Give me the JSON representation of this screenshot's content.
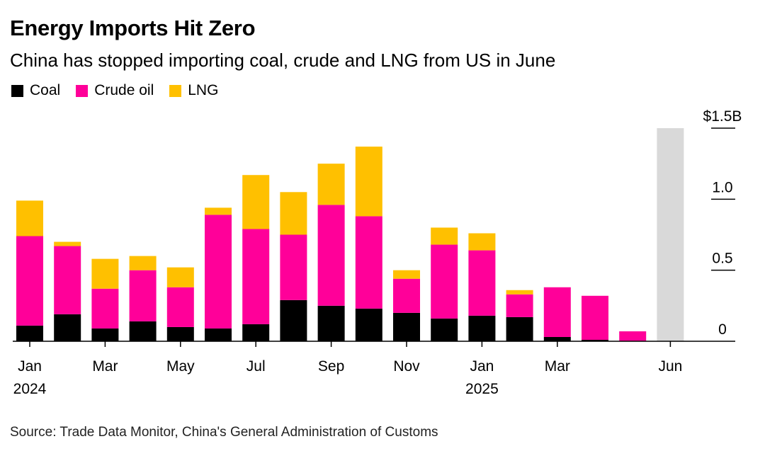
{
  "title": "Energy Imports Hit Zero",
  "subtitle": "China has stopped importing coal, crude and LNG from US in June",
  "legend": [
    {
      "label": "Coal",
      "color": "#000000"
    },
    {
      "label": "Crude oil",
      "color": "#ff0099"
    },
    {
      "label": "LNG",
      "color": "#ffc000"
    }
  ],
  "source": "Source: Trade Data Monitor, China's General Administration of Customs",
  "colors": {
    "coal": "#000000",
    "crude": "#ff0099",
    "lng": "#ffc000",
    "highlight": "#d9d9d9",
    "axis": "#000000"
  },
  "chart_data": {
    "type": "bar",
    "stacked": true,
    "categories": [
      "2024-01",
      "2024-02",
      "2024-03",
      "2024-04",
      "2024-05",
      "2024-06",
      "2024-07",
      "2024-08",
      "2024-09",
      "2024-10",
      "2024-11",
      "2024-12",
      "2025-01",
      "2025-02",
      "2025-03",
      "2025-04",
      "2025-05",
      "2025-06"
    ],
    "series": [
      {
        "name": "Coal",
        "color": "#000000",
        "values": [
          0.11,
          0.19,
          0.09,
          0.14,
          0.1,
          0.09,
          0.12,
          0.29,
          0.25,
          0.23,
          0.2,
          0.16,
          0.18,
          0.17,
          0.03,
          0.01,
          0.0,
          0.0
        ]
      },
      {
        "name": "Crude oil",
        "color": "#ff0099",
        "values": [
          0.63,
          0.48,
          0.28,
          0.36,
          0.28,
          0.8,
          0.67,
          0.46,
          0.71,
          0.65,
          0.24,
          0.52,
          0.46,
          0.16,
          0.35,
          0.31,
          0.07,
          0.0
        ]
      },
      {
        "name": "LNG",
        "color": "#ffc000",
        "values": [
          0.25,
          0.03,
          0.21,
          0.1,
          0.14,
          0.05,
          0.38,
          0.3,
          0.29,
          0.49,
          0.06,
          0.12,
          0.12,
          0.03,
          0.0,
          0.0,
          0.0,
          0.0
        ]
      }
    ],
    "highlight": {
      "category": "2025-06",
      "value": 1.5
    },
    "y_ticks": [
      {
        "value": 0,
        "label": "0"
      },
      {
        "value": 0.5,
        "label": "0.5"
      },
      {
        "value": 1.0,
        "label": "1.0"
      },
      {
        "value": 1.5,
        "label": "$1.5B"
      }
    ],
    "x_ticks": [
      {
        "index": 0,
        "label": "Jan",
        "year": "2024"
      },
      {
        "index": 2,
        "label": "Mar",
        "year": ""
      },
      {
        "index": 4,
        "label": "May",
        "year": ""
      },
      {
        "index": 6,
        "label": "Jul",
        "year": ""
      },
      {
        "index": 8,
        "label": "Sep",
        "year": ""
      },
      {
        "index": 10,
        "label": "Nov",
        "year": ""
      },
      {
        "index": 12,
        "label": "Jan",
        "year": "2025"
      },
      {
        "index": 14,
        "label": "Mar",
        "year": ""
      },
      {
        "index": 17,
        "label": "Jun",
        "year": ""
      }
    ],
    "ylim": [
      0,
      1.5
    ],
    "xlabel": "",
    "ylabel": "",
    "grid": false,
    "y_axis_position": "right",
    "legend_position": "top-left"
  }
}
